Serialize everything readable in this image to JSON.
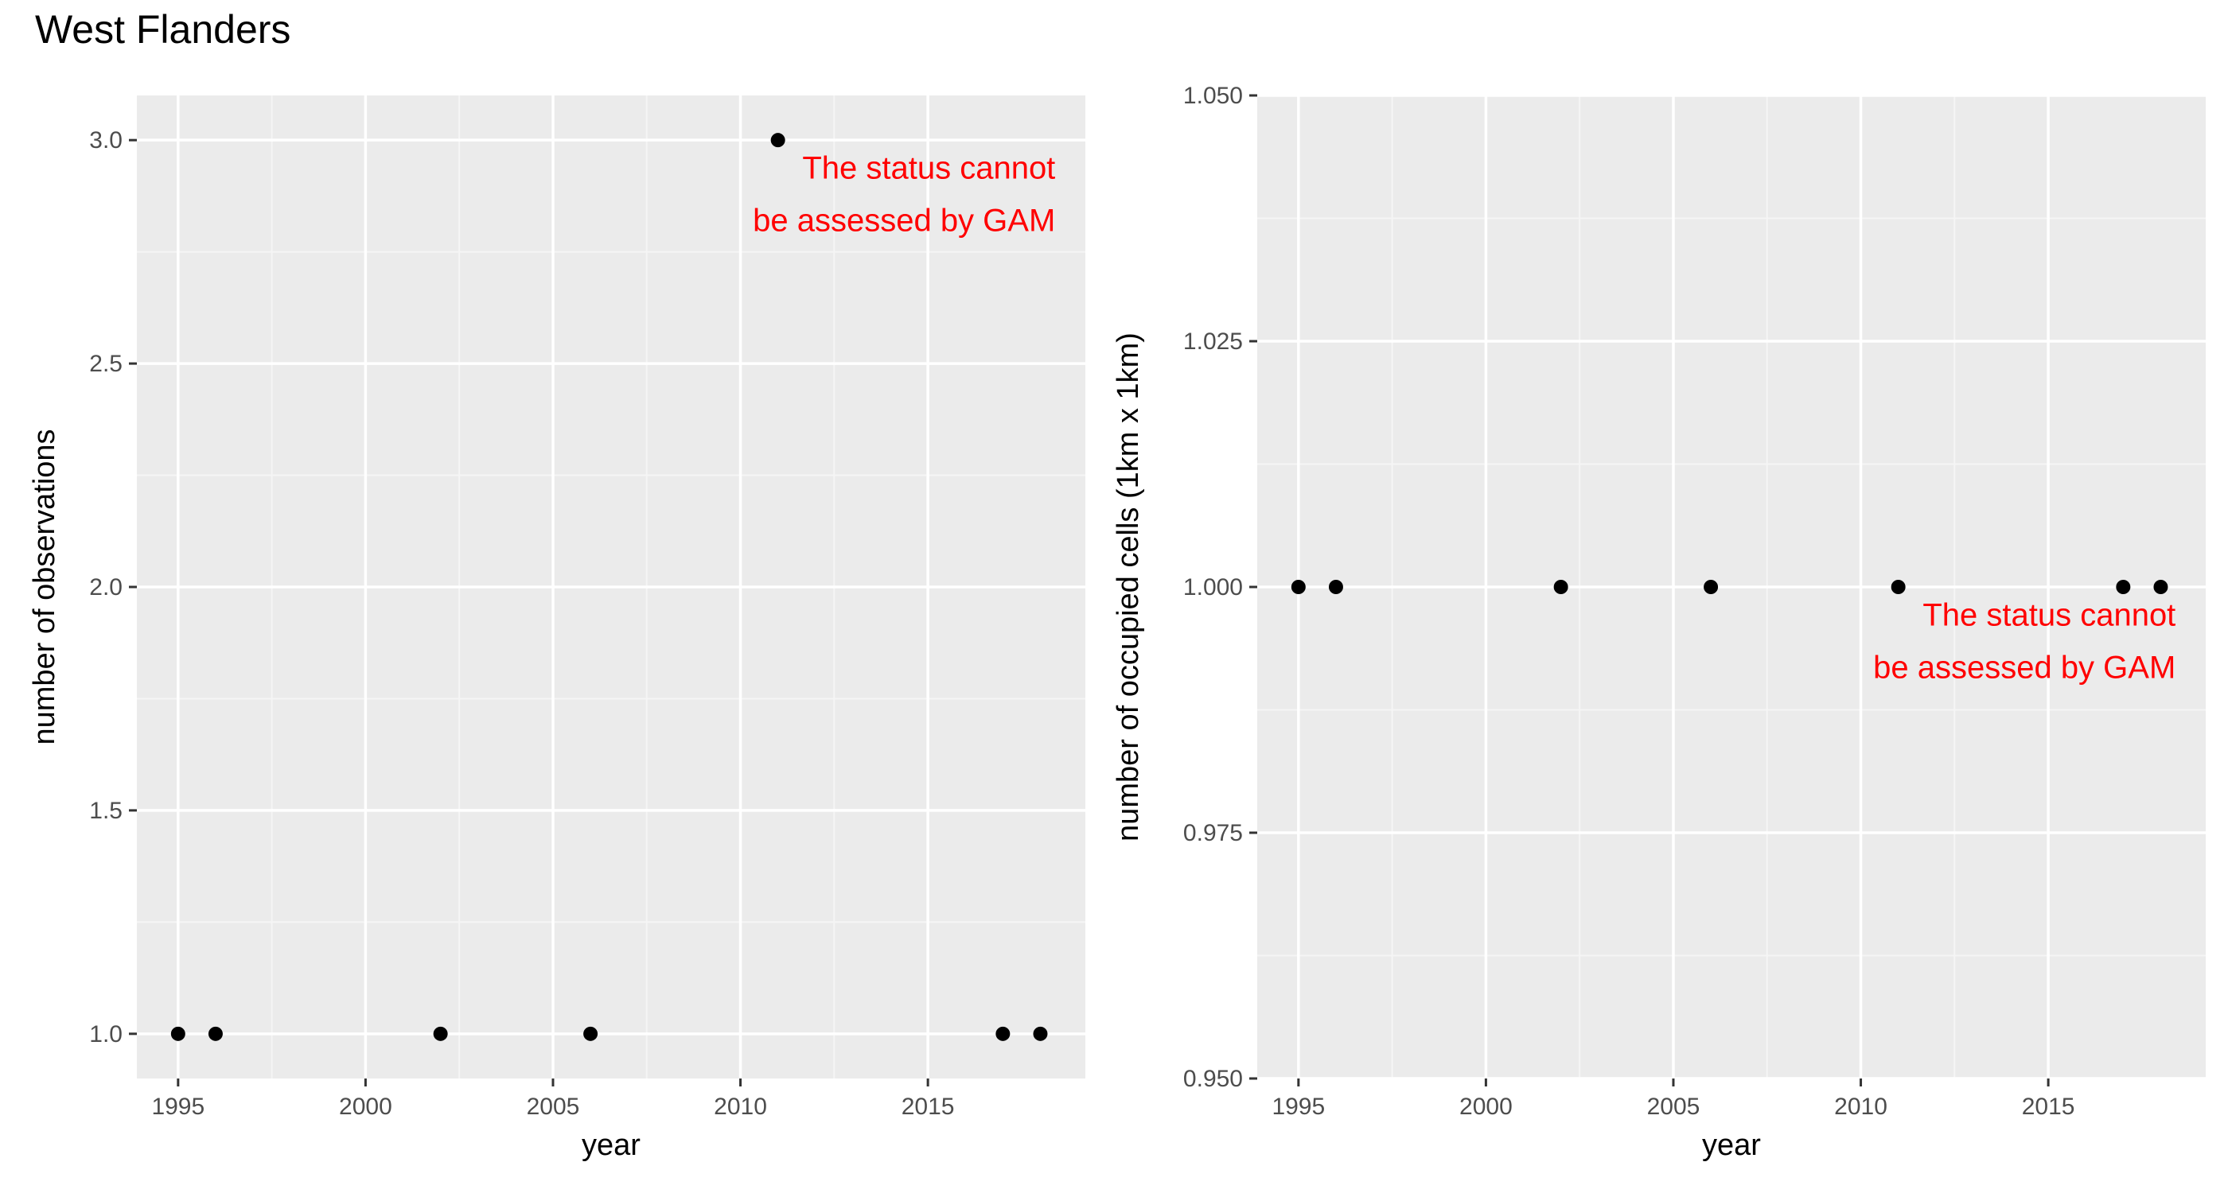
{
  "title": "West Flanders",
  "colors": {
    "panel_background": "#EBEBEB",
    "grid_major": "#FFFFFF",
    "grid_minor": "#F5F5F5",
    "point": "#000000",
    "annotation": "#FF0000",
    "tick_text": "#4D4D4D",
    "axis_title": "#000000"
  },
  "chart_data": [
    {
      "type": "scatter",
      "xlabel": "year",
      "ylabel": "number of observations",
      "xlim": [
        1993.9,
        2019.2
      ],
      "ylim": [
        0.9,
        3.1
      ],
      "x_ticks": [
        1995,
        2000,
        2005,
        2010,
        2015
      ],
      "x_tick_labels": [
        "1995",
        "2000",
        "2005",
        "2010",
        "2015"
      ],
      "y_ticks": [
        1.0,
        1.5,
        2.0,
        2.5,
        3.0
      ],
      "y_tick_labels": [
        "1.0",
        "1.5",
        "2.0",
        "2.5",
        "3.0"
      ],
      "grid": true,
      "x": [
        1995,
        1996,
        2002,
        2006,
        2011,
        2017,
        2018
      ],
      "y": [
        1,
        1,
        1,
        1,
        3,
        1,
        1
      ],
      "annotation": {
        "lines": [
          "The status cannot",
          "be assessed by GAM"
        ],
        "x": 2018.4,
        "y": 2.967
      }
    },
    {
      "type": "scatter",
      "xlabel": "year",
      "ylabel": "number of occupied cells (1km x 1km)",
      "xlim": [
        1993.9,
        2019.2
      ],
      "ylim": [
        0.95,
        1.05
      ],
      "x_ticks": [
        1995,
        2000,
        2005,
        2010,
        2015
      ],
      "x_tick_labels": [
        "1995",
        "2000",
        "2005",
        "2010",
        "2015"
      ],
      "y_ticks": [
        0.95,
        0.975,
        1.0,
        1.025,
        1.05
      ],
      "y_tick_labels": [
        "0.950",
        "0.975",
        "1.000",
        "1.025",
        "1.050"
      ],
      "grid": true,
      "x": [
        1995,
        1996,
        2002,
        2006,
        2011,
        2017,
        2018
      ],
      "y": [
        1,
        1,
        1,
        1,
        1,
        1,
        1
      ],
      "annotation": {
        "lines": [
          "The status cannot",
          "be assessed by GAM"
        ],
        "x": 2018.4,
        "y": 0.9985
      }
    }
  ]
}
